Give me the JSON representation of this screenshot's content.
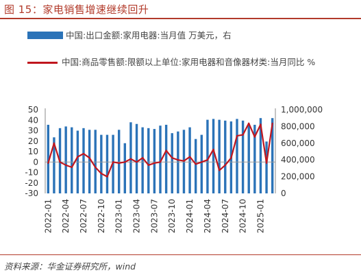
{
  "title": "图 15：家电销售增速继续回升",
  "source": "资料来源：华金证券研究所，wind",
  "chart_data": {
    "type": "bar+line",
    "series": [
      {
        "name": "中国:出口金额:家用电器:当月值 万美元，右",
        "type": "bar",
        "axis": "right",
        "color": "#2b73b8",
        "values": [
          820000,
          670000,
          780000,
          800000,
          790000,
          750000,
          780000,
          760000,
          760000,
          700000,
          700000,
          700000,
          760000,
          600000,
          850000,
          830000,
          790000,
          780000,
          770000,
          810000,
          820000,
          720000,
          740000,
          760000,
          790000,
          650000,
          700000,
          880000,
          890000,
          880000,
          870000,
          860000,
          890000,
          870000,
          830000,
          820000,
          900000,
          620000,
          900000
        ]
      },
      {
        "name": "中国:商品零售额:限额以上单位:家用电器和音像器材类:当月同比 %",
        "type": "line",
        "axis": "left",
        "color": "#c0161e",
        "values": [
          -1,
          18,
          0,
          -3,
          -5,
          5,
          8,
          4,
          -5,
          -11,
          -14,
          0,
          -1,
          0,
          3,
          0,
          4,
          -3,
          -1,
          0,
          11,
          4,
          2,
          1,
          5,
          -2,
          0,
          2,
          12,
          -8,
          -3,
          4,
          25,
          26,
          37,
          24,
          36,
          -1,
          37
        ]
      }
    ],
    "x_tick_labels": [
      "2022-01",
      "2022-04",
      "2022-07",
      "2022-10",
      "2023-01",
      "2023-04",
      "2023-07",
      "2023-10",
      "2024-01",
      "2024-04",
      "2024-07",
      "2024-10",
      "2025-01"
    ],
    "y_left": {
      "min": -30,
      "max": 50,
      "ticks": [
        "-30",
        "-25",
        "-20",
        "-15",
        "-10",
        "-5",
        "0",
        "5",
        "10",
        "15",
        "20",
        "25",
        "30",
        "35",
        "40",
        "45",
        "50"
      ]
    },
    "y_right": {
      "min": 0,
      "max": 1000000,
      "ticks": [
        "0",
        "200,000",
        "400,000",
        "600,000",
        "800,000",
        "1,000,000"
      ]
    },
    "legend_position": "top"
  }
}
